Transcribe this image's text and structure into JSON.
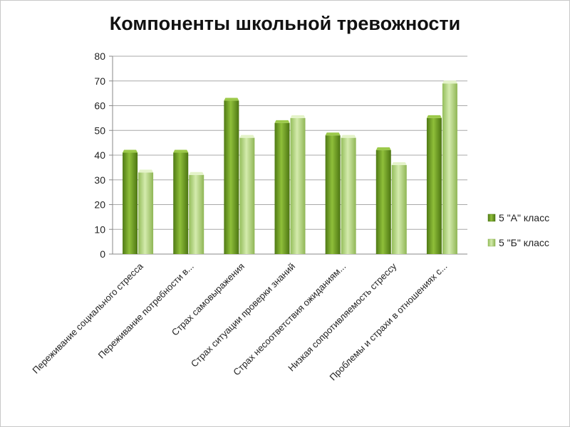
{
  "colors": {
    "series_a": "#6f9a25",
    "series_b": "#aed07a",
    "grid": "#a8a8a8"
  },
  "chart_data": {
    "type": "bar",
    "title": "Компоненты школьной тревожности",
    "xlabel": "",
    "ylabel": "",
    "ylim": [
      0,
      80
    ],
    "yticks": [
      0,
      10,
      20,
      30,
      40,
      50,
      60,
      70,
      80
    ],
    "grid": true,
    "legend_position": "right",
    "categories": [
      "Переживание социального стресса",
      "Переживание потребности в...",
      "Страх самовыражения",
      "Страх ситуации проверки знаний",
      "Страх несоответствия ожиданиям...",
      "Низкая сопротивляемость стрессу",
      "Проблемы и страхи в отношениях  с..."
    ],
    "series": [
      {
        "name": "5 \"А\" класс",
        "values": [
          41,
          41,
          62,
          53,
          48,
          42,
          55
        ]
      },
      {
        "name": "5 \"Б\" класс",
        "values": [
          33,
          32,
          47,
          55,
          47,
          36,
          69
        ]
      }
    ]
  }
}
